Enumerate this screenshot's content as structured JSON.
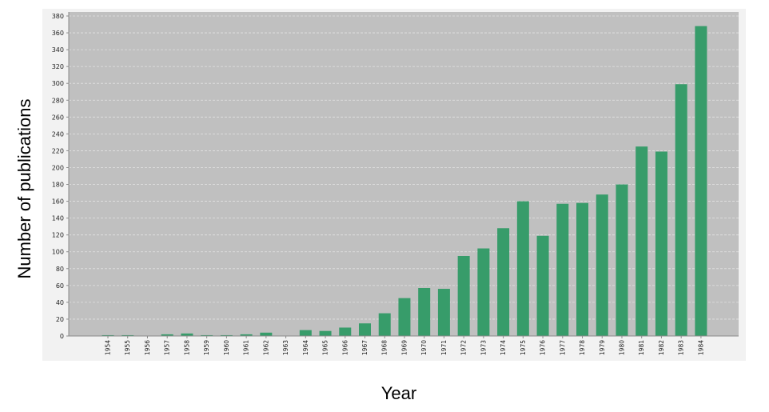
{
  "chart_data": {
    "type": "bar",
    "title": "",
    "xlabel": "Year",
    "ylabel": "Number of publications",
    "ylim": [
      0,
      380
    ],
    "y_ticks": [
      0,
      20,
      40,
      60,
      80,
      100,
      120,
      140,
      160,
      180,
      200,
      220,
      240,
      260,
      280,
      300,
      320,
      340,
      360,
      380
    ],
    "grid": true,
    "legend": "none",
    "categories": [
      "1954",
      "1955",
      "1956",
      "1957",
      "1958",
      "1959",
      "1960",
      "1961",
      "1962",
      "1963",
      "1964",
      "1965",
      "1966",
      "1967",
      "1968",
      "1969",
      "1970",
      "1971",
      "1972",
      "1973",
      "1974",
      "1975",
      "1976",
      "1977",
      "1978",
      "1979",
      "1980",
      "1981",
      "1982",
      "1983",
      "1984"
    ],
    "values": [
      1,
      1,
      0,
      2,
      3,
      1,
      1,
      2,
      4,
      0,
      7,
      6,
      10,
      15,
      27,
      45,
      57,
      56,
      95,
      104,
      128,
      160,
      119,
      157,
      158,
      168,
      180,
      225,
      219,
      299,
      368
    ],
    "colors": {
      "bar": "#379c6a",
      "plot_background": "#c0c0c0",
      "outer_background": "#f2f2f2",
      "gridline": "#e2e2e2"
    }
  }
}
